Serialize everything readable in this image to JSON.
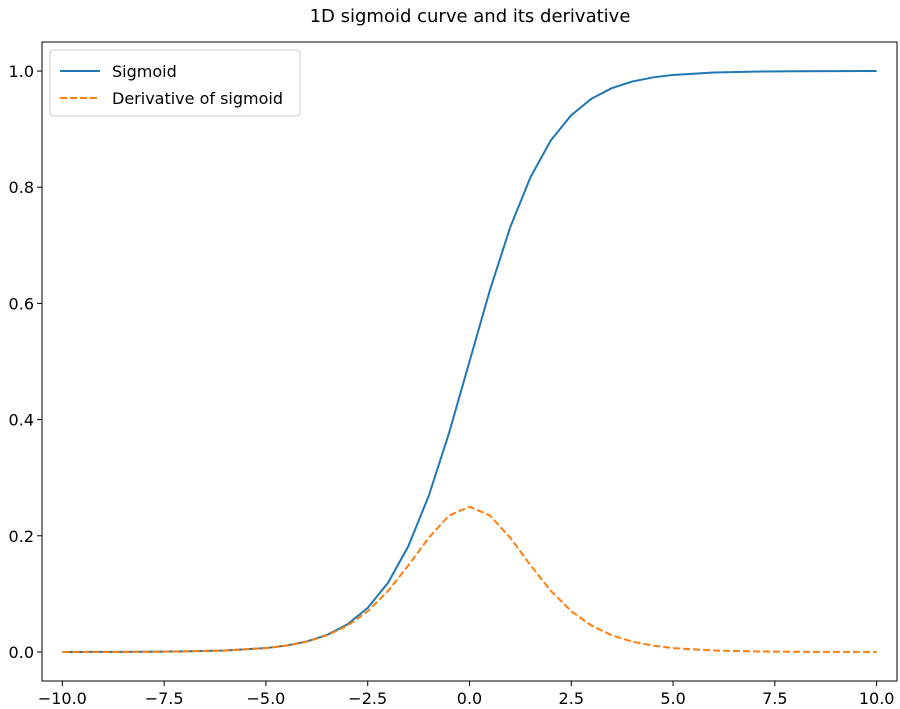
{
  "chart_data": {
    "type": "line",
    "title": "1D sigmoid curve and its derivative",
    "xlabel": "",
    "ylabel": "",
    "xlim": [
      -10.5,
      10.5
    ],
    "ylim": [
      -0.05,
      1.05
    ],
    "x_ticks": [
      -10.0,
      -7.5,
      -5.0,
      -2.5,
      0.0,
      2.5,
      5.0,
      7.5,
      10.0
    ],
    "x_tick_labels": [
      "−10.0",
      "−7.5",
      "−5.0",
      "−2.5",
      "0.0",
      "2.5",
      "5.0",
      "7.5",
      "10.0"
    ],
    "y_ticks": [
      0.0,
      0.2,
      0.4,
      0.6,
      0.8,
      1.0
    ],
    "y_tick_labels": [
      "0.0",
      "0.2",
      "0.4",
      "0.6",
      "0.8",
      "1.0"
    ],
    "grid": false,
    "legend_position": "top-left",
    "series": [
      {
        "name": "Sigmoid",
        "color": "#1f77b4",
        "line_style": "solid",
        "x": [
          -10,
          -9,
          -8,
          -7,
          -6,
          -5,
          -4.5,
          -4,
          -3.5,
          -3,
          -2.5,
          -2,
          -1.5,
          -1,
          -0.5,
          0,
          0.5,
          1,
          1.5,
          2,
          2.5,
          3,
          3.5,
          4,
          4.5,
          5,
          6,
          7,
          8,
          9,
          10
        ],
        "y": [
          0.0,
          0.0001,
          0.0003,
          0.0009,
          0.0025,
          0.0067,
          0.011,
          0.018,
          0.0293,
          0.0474,
          0.0759,
          0.1192,
          0.1824,
          0.2689,
          0.3775,
          0.5,
          0.6225,
          0.7311,
          0.8176,
          0.8808,
          0.9241,
          0.9526,
          0.9707,
          0.982,
          0.989,
          0.9933,
          0.9975,
          0.9991,
          0.9997,
          0.9999,
          1.0
        ]
      },
      {
        "name": "Derivative of sigmoid",
        "color": "#ff7f0e",
        "line_style": "dashed",
        "x": [
          -10,
          -9,
          -8,
          -7,
          -6,
          -5,
          -4.5,
          -4,
          -3.5,
          -3,
          -2.5,
          -2,
          -1.5,
          -1,
          -0.5,
          0,
          0.5,
          1,
          1.5,
          2,
          2.5,
          3,
          3.5,
          4,
          4.5,
          5,
          6,
          7,
          8,
          9,
          10
        ],
        "y": [
          0.0,
          0.0001,
          0.0003,
          0.0009,
          0.0025,
          0.0066,
          0.0109,
          0.0177,
          0.0285,
          0.0452,
          0.0701,
          0.105,
          0.1491,
          0.1966,
          0.235,
          0.25,
          0.235,
          0.1966,
          0.1491,
          0.105,
          0.0701,
          0.0452,
          0.0285,
          0.0177,
          0.0109,
          0.0066,
          0.0025,
          0.0009,
          0.0003,
          0.0001,
          0.0
        ]
      }
    ]
  }
}
